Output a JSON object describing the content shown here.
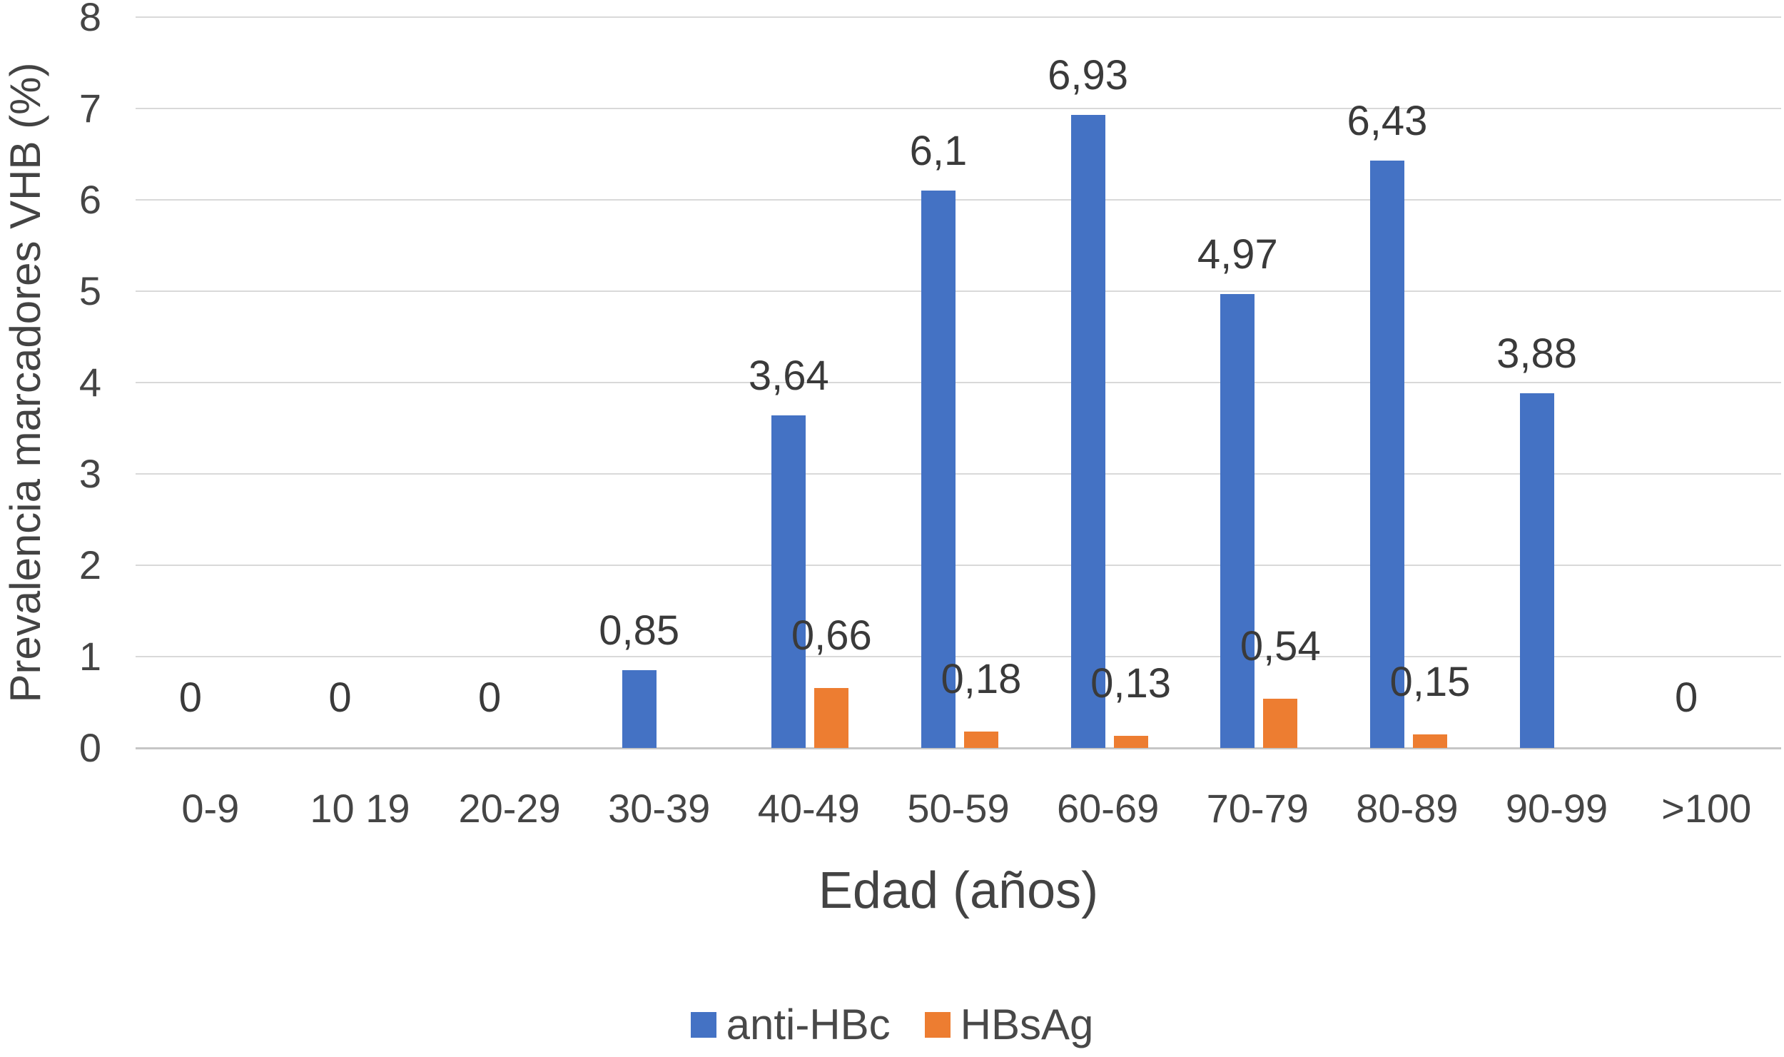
{
  "chart_data": {
    "type": "bar",
    "title": "",
    "xlabel": "Edad (años)",
    "ylabel": "Prevalencia marcadores VHB (%)",
    "ylim": [
      0,
      8
    ],
    "yticks": [
      0,
      1,
      2,
      3,
      4,
      5,
      6,
      7,
      8
    ],
    "grid": true,
    "legend_position": "bottom",
    "decimal_separator": ",",
    "categories": [
      "0-9",
      "10 19",
      "20-29",
      "30-39",
      "40-49",
      "50-59",
      "60-69",
      "70-79",
      "80-89",
      "90-99",
      ">100"
    ],
    "series": [
      {
        "name": "anti-HBc",
        "color": "#4472C4",
        "values": [
          0,
          0,
          0,
          0.85,
          3.64,
          6.1,
          6.93,
          4.97,
          6.43,
          3.88,
          0
        ],
        "labels": [
          "0",
          "0",
          "0",
          "0,85",
          "3,64",
          "6,1",
          "6,93",
          "4,97",
          "6,43",
          "3,88",
          "0"
        ]
      },
      {
        "name": "HBsAg",
        "color": "#ED7D31",
        "values": [
          null,
          null,
          null,
          null,
          0.66,
          0.18,
          0.13,
          0.54,
          0.15,
          null,
          null
        ],
        "labels": [
          null,
          null,
          null,
          null,
          "0,66",
          "0,18",
          "0,13",
          "0,54",
          "0,15",
          null,
          null
        ]
      }
    ]
  }
}
